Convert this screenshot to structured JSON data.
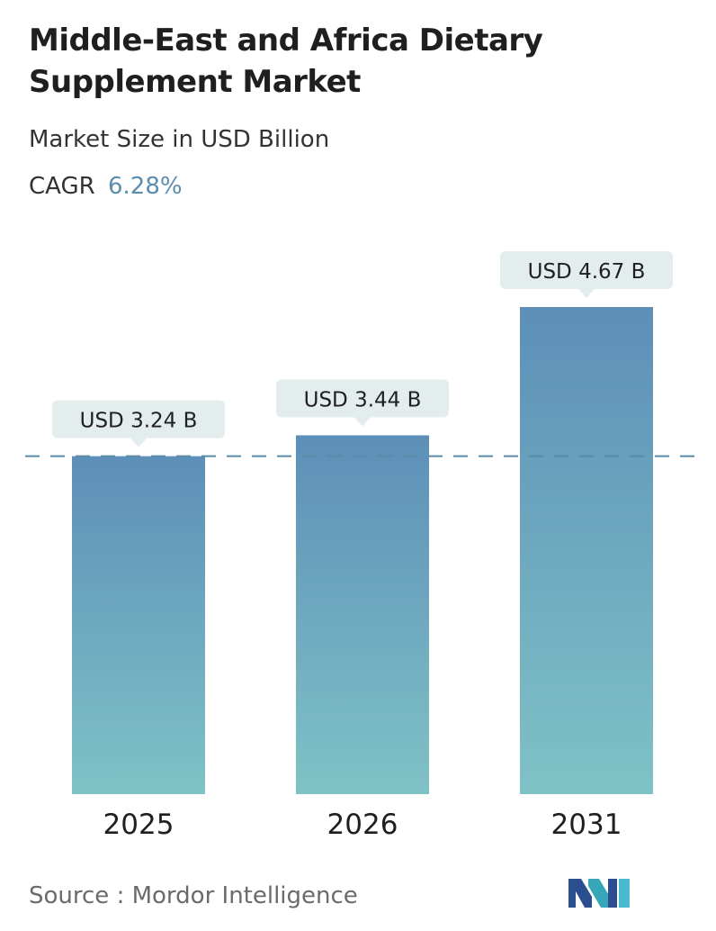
{
  "header": {
    "title": "Middle-East and Africa Dietary Supplement Market",
    "subtitle": "Market Size in USD Billion",
    "cagr_label": "CAGR",
    "cagr_value": "6.28%"
  },
  "chart_data": {
    "type": "bar",
    "categories": [
      "2025",
      "2026",
      "2031"
    ],
    "values": [
      3.24,
      3.44,
      4.67
    ],
    "data_labels": [
      "USD 3.24 B",
      "USD 3.44 B",
      "USD 4.67 B"
    ],
    "reference_line": 3.24,
    "ylim": [
      0,
      4.67
    ],
    "grid": false,
    "legend": "none",
    "colors": {
      "bar_top": "#5d8fb8",
      "bar_bottom": "#7fc2c6",
      "label_bg": "#e4edee",
      "reference_line": "#5a8aa6"
    }
  },
  "footer": {
    "source": "Source :  Mordor Intelligence"
  },
  "logo": {
    "icon": "mordor-intelligence-logo-icon"
  }
}
